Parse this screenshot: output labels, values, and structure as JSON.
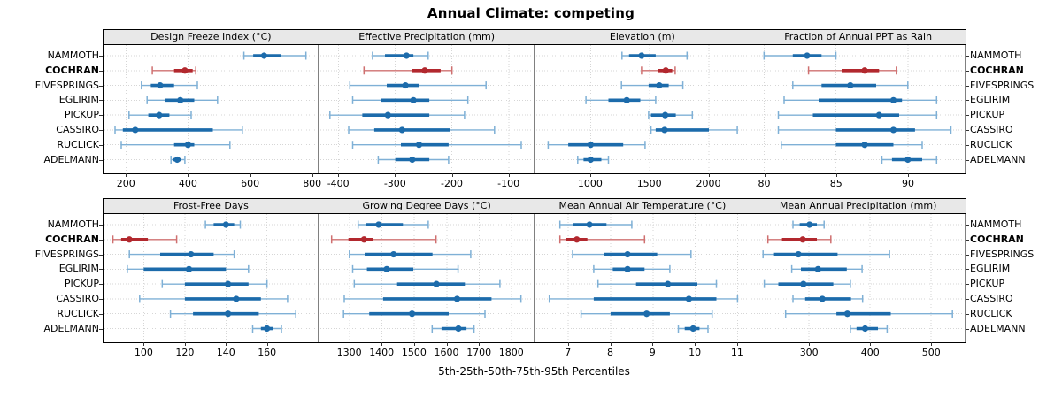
{
  "title": "Annual Climate: competing",
  "caption": "5th-25th-50th-75th-95th Percentiles",
  "stations": [
    "NAMMOTH",
    "COCHRAN",
    "FIVESPRINGS",
    "EGLIRIM",
    "PICKUP",
    "CASSIRO",
    "RUCLICK",
    "ADELMANN"
  ],
  "highlight_station": "COCHRAN",
  "colors": {
    "series": "#1c6bab",
    "series_light": "#7fb0d6",
    "highlight": "#b2282e",
    "highlight_light": "#cf7070",
    "strip_bg": "#e8e8e8",
    "grid": "#d6d6d6",
    "border": "#000000",
    "tick": "#333333"
  },
  "chart_data": {
    "type": "dotplot-intervals",
    "percentile_order": [
      "5th",
      "25th",
      "50th",
      "75th",
      "95th"
    ],
    "note": "each series entry is [p5,p25,p50,p75,p95] per station, stations listed top to bottom",
    "panels": [
      {
        "title": "Design Freeze Index (°C)",
        "xlim": [
          125,
          820
        ],
        "xticks": [
          200,
          400,
          600,
          800
        ],
        "series": [
          [
            580,
            610,
            645,
            700,
            780
          ],
          [
            285,
            355,
            390,
            415,
            425
          ],
          [
            250,
            280,
            310,
            355,
            430
          ],
          [
            268,
            325,
            375,
            420,
            495
          ],
          [
            210,
            272,
            307,
            340,
            410
          ],
          [
            165,
            190,
            230,
            480,
            575
          ],
          [
            185,
            355,
            400,
            420,
            535
          ],
          [
            345,
            352,
            365,
            378,
            390
          ]
        ]
      },
      {
        "title": "Effective Precipitation (mm)",
        "xlim": [
          -435,
          -55
        ],
        "xticks": [
          -400,
          -300,
          -200,
          -100
        ],
        "series": [
          [
            -340,
            -318,
            -280,
            -268,
            -242
          ],
          [
            -355,
            -270,
            -248,
            -220,
            -200
          ],
          [
            -380,
            -315,
            -282,
            -258,
            -140
          ],
          [
            -375,
            -325,
            -268,
            -240,
            -172
          ],
          [
            -415,
            -358,
            -313,
            -240,
            -178
          ],
          [
            -382,
            -337,
            -288,
            -203,
            -125
          ],
          [
            -375,
            -290,
            -258,
            -206,
            -78
          ],
          [
            -330,
            -300,
            -270,
            -240,
            -206
          ]
        ]
      },
      {
        "title": "Elevation (m)",
        "xlim": [
          525,
          2350
        ],
        "xticks": [
          1000,
          1500,
          2000
        ],
        "series": [
          [
            1265,
            1325,
            1430,
            1550,
            1815
          ],
          [
            1430,
            1570,
            1635,
            1690,
            1715
          ],
          [
            1260,
            1490,
            1580,
            1660,
            1780
          ],
          [
            960,
            1150,
            1305,
            1420,
            1550
          ],
          [
            1490,
            1510,
            1630,
            1720,
            1860
          ],
          [
            1510,
            1550,
            1625,
            2000,
            2240
          ],
          [
            640,
            810,
            1000,
            1275,
            1460
          ],
          [
            890,
            940,
            1000,
            1090,
            1150
          ]
        ]
      },
      {
        "title": "Fraction of Annual PPT as Rain",
        "xlim": [
          79,
          94
        ],
        "xticks": [
          80,
          85,
          90
        ],
        "series": [
          [
            80,
            82,
            83,
            84,
            85
          ],
          [
            83.1,
            85.4,
            87,
            88,
            89.2
          ],
          [
            82,
            84,
            86,
            87.8,
            90
          ],
          [
            81.4,
            83.8,
            89,
            89.6,
            92
          ],
          [
            81,
            83.4,
            88,
            89.4,
            92
          ],
          [
            81,
            85,
            89,
            90.5,
            93
          ],
          [
            81.2,
            85,
            87,
            89,
            91
          ],
          [
            88.2,
            88.9,
            90,
            91,
            92
          ]
        ]
      },
      {
        "title": "Frost-Free Days",
        "xlim": [
          80,
          185
        ],
        "xticks": [
          100,
          120,
          140,
          160
        ],
        "series": [
          [
            130,
            134,
            140,
            144,
            147
          ],
          [
            85,
            89,
            93,
            102,
            116
          ],
          [
            93,
            108,
            123,
            134,
            144
          ],
          [
            92,
            100,
            122,
            140,
            151
          ],
          [
            109,
            120,
            141,
            151,
            160
          ],
          [
            98,
            120,
            145,
            157,
            170
          ],
          [
            113,
            124,
            141,
            156,
            174
          ],
          [
            153,
            157,
            160,
            163,
            167
          ]
        ]
      },
      {
        "title": "Growing Degree Days (°C)",
        "xlim": [
          1205,
          1870
        ],
        "xticks": [
          1300,
          1400,
          1500,
          1600,
          1700,
          1800
        ],
        "series": [
          [
            1327,
            1352,
            1390,
            1465,
            1543
          ],
          [
            1245,
            1297,
            1345,
            1373,
            1567
          ],
          [
            1300,
            1347,
            1436,
            1556,
            1674
          ],
          [
            1310,
            1354,
            1415,
            1497,
            1635
          ],
          [
            1315,
            1447,
            1568,
            1656,
            1764
          ],
          [
            1284,
            1404,
            1632,
            1738,
            1829
          ],
          [
            1282,
            1361,
            1493,
            1606,
            1718
          ],
          [
            1555,
            1584,
            1636,
            1661,
            1684
          ]
        ]
      },
      {
        "title": "Mean Annual Air Temperature (°C)",
        "xlim": [
          6.2,
          11.3
        ],
        "xticks": [
          7,
          8,
          9,
          10,
          11
        ],
        "series": [
          [
            6.8,
            7.1,
            7.5,
            7.9,
            8.5
          ],
          [
            6.8,
            6.95,
            7.2,
            7.45,
            8.8
          ],
          [
            7.1,
            7.85,
            8.4,
            9.1,
            9.9
          ],
          [
            7.6,
            8.05,
            8.4,
            8.8,
            9.4
          ],
          [
            7.7,
            8.6,
            9.35,
            10.05,
            10.5
          ],
          [
            6.55,
            7.6,
            9.85,
            10.5,
            11.0
          ],
          [
            7.3,
            8.0,
            8.85,
            9.4,
            10.4
          ],
          [
            9.6,
            9.75,
            9.95,
            10.1,
            10.3
          ]
        ]
      },
      {
        "title": "Mean Annual Precipitation (mm)",
        "xlim": [
          203,
          556
        ],
        "xticks": [
          300,
          400,
          500
        ],
        "series": [
          [
            274,
            285,
            301,
            313,
            325
          ],
          [
            233,
            256,
            290,
            313,
            336
          ],
          [
            225,
            243,
            283,
            347,
            432
          ],
          [
            272,
            287,
            315,
            362,
            387
          ],
          [
            227,
            250,
            291,
            340,
            368
          ],
          [
            274,
            294,
            322,
            369,
            388
          ],
          [
            262,
            345,
            363,
            434,
            535
          ],
          [
            368,
            378,
            392,
            413,
            428
          ]
        ]
      }
    ]
  }
}
